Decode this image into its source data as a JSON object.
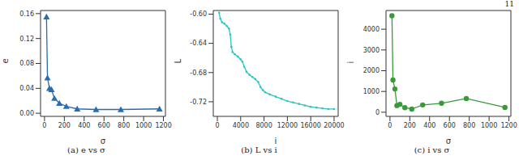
{
  "page": "11",
  "chart_data": [
    {
      "type": "line",
      "title": "(a) e vs σ",
      "x_label": "σ",
      "y_label": "e",
      "color": "#2b6cb0",
      "marker": "triangle",
      "x": [
        20,
        30,
        50,
        70,
        100,
        150,
        220,
        330,
        520,
        770,
        1160
      ],
      "values": [
        0.155,
        0.057,
        0.04,
        0.038,
        0.024,
        0.016,
        0.011,
        0.007,
        0.006,
        0.006,
        0.007
      ],
      "xlim": [
        -40,
        1220
      ],
      "xticks": [
        0,
        200,
        400,
        600,
        800,
        1000,
        1200
      ],
      "ylim": [
        -0.005,
        0.165
      ],
      "yticks": [
        {
          "value": 0,
          "label": "0.00"
        },
        {
          "value": 0.04,
          "label": "0.04"
        },
        {
          "value": 0.08,
          "label": "0.08"
        },
        {
          "value": 0.12,
          "label": "0.12"
        },
        {
          "value": 0.16,
          "label": "0.16"
        }
      ]
    },
    {
      "type": "line",
      "title": "(b) L vs i",
      "x_label": "i",
      "y_label": "L",
      "color": "#2ec4c4",
      "marker": "dot",
      "x": [
        300,
        500,
        800,
        1200,
        1600,
        2000,
        2200,
        2400,
        2600,
        3000,
        3500,
        4000,
        4300,
        4600,
        5000,
        5500,
        6000,
        6500,
        7000,
        7400,
        7800,
        8200,
        9000,
        10000,
        11000,
        12000,
        13000,
        14000,
        15000,
        16000,
        17000,
        18000,
        19000,
        20000
      ],
      "values": [
        -0.598,
        -0.606,
        -0.611,
        -0.613,
        -0.616,
        -0.62,
        -0.628,
        -0.645,
        -0.652,
        -0.655,
        -0.658,
        -0.662,
        -0.665,
        -0.672,
        -0.679,
        -0.683,
        -0.686,
        -0.689,
        -0.693,
        -0.7,
        -0.704,
        -0.707,
        -0.71,
        -0.713,
        -0.716,
        -0.719,
        -0.721,
        -0.723,
        -0.725,
        -0.727,
        -0.728,
        -0.729,
        -0.73,
        -0.73
      ],
      "xlim": [
        -700,
        20700
      ],
      "xticks": [
        0,
        4000,
        8000,
        12000,
        16000,
        20000
      ],
      "ylim": [
        -0.74,
        -0.595
      ],
      "yticks": [
        {
          "value": -0.6,
          "label": "-0.60"
        },
        {
          "value": -0.64,
          "label": "-0.64"
        },
        {
          "value": -0.68,
          "label": "-0.68"
        },
        {
          "value": -0.72,
          "label": "-0.72"
        }
      ]
    },
    {
      "type": "line",
      "title": "(c) i vs σ",
      "x_label": "σ",
      "y_label": "i",
      "color": "#3a9a3a",
      "marker": "circle",
      "x": [
        20,
        30,
        50,
        70,
        100,
        150,
        220,
        330,
        520,
        770,
        1160
      ],
      "values": [
        4650,
        1550,
        1120,
        320,
        380,
        220,
        150,
        350,
        430,
        660,
        230
      ],
      "xlim": [
        -40,
        1220
      ],
      "xticks": [
        0,
        200,
        400,
        600,
        800,
        1000,
        1200
      ],
      "ylim": [
        -200,
        4900
      ],
      "yticks": [
        0,
        1000,
        2000,
        3000,
        4000
      ]
    }
  ]
}
